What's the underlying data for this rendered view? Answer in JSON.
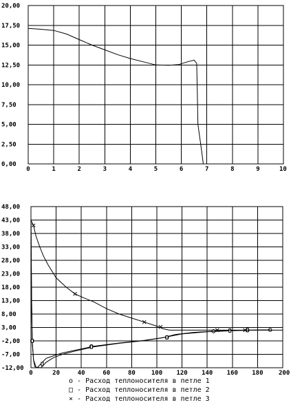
{
  "chart_data": [
    {
      "type": "line",
      "title": "",
      "xlabel": "",
      "ylabel": "",
      "xlim": [
        0,
        10
      ],
      "ylim": [
        0,
        20
      ],
      "x_ticks": [
        "0",
        "1",
        "2",
        "3",
        "4",
        "5",
        "6",
        "7",
        "8",
        "9",
        "10"
      ],
      "y_ticks": [
        "0,00",
        "2,50",
        "5,00",
        "7,50",
        "10,00",
        "12,50",
        "15,00",
        "17,50",
        "20,00"
      ],
      "grid": true,
      "series": [
        {
          "x": [
            0,
            0.5,
            1,
            1.5,
            2,
            2.5,
            3,
            3.5,
            4,
            4.5,
            5,
            5.5,
            5.9,
            6.2,
            6.5,
            6.6,
            6.62,
            6.65,
            6.8,
            6.86
          ],
          "y": [
            17.1,
            17.0,
            16.85,
            16.4,
            15.7,
            15.0,
            14.4,
            13.8,
            13.3,
            12.9,
            12.5,
            12.45,
            12.55,
            12.85,
            13.1,
            12.7,
            10.0,
            5.0,
            1.5,
            0.0
          ]
        }
      ]
    },
    {
      "type": "line",
      "title": "",
      "xlabel": "",
      "ylabel": "",
      "xlim": [
        0,
        200
      ],
      "ylim": [
        -12,
        48
      ],
      "x_ticks": [
        "0",
        "20",
        "40",
        "60",
        "80",
        "100",
        "120",
        "140",
        "160",
        "180",
        "200"
      ],
      "y_ticks": [
        "-12,00",
        "-7,00",
        "-2,00",
        "3,00",
        "8,00",
        "13,00",
        "18,00",
        "23,00",
        "28,00",
        "33,00",
        "38,00",
        "43,00",
        "48,00"
      ],
      "grid": true,
      "series": [
        {
          "name": "о - Расход теплоносителя в петле 1",
          "marker": "circle",
          "x": [
            0,
            0.5,
            1,
            2,
            3,
            5,
            8,
            12,
            18,
            25,
            35,
            50,
            70,
            90,
            105,
            115,
            130,
            145,
            160,
            175,
            190
          ],
          "y": [
            44,
            14,
            -2,
            -9,
            -11.5,
            -12,
            -10.5,
            -8.5,
            -7.5,
            -6.5,
            -5.5,
            -4.0,
            -2.8,
            -1.8,
            -0.8,
            0.4,
            1.2,
            1.6,
            1.9,
            2.0,
            2.1
          ],
          "marker_x": [
            1,
            48,
            108,
            145,
            172,
            190
          ],
          "marker_y": [
            -2,
            -4.0,
            -0.7,
            1.6,
            1.95,
            2.1
          ]
        },
        {
          "name": "□ - Расход теплоносителя в петле 2",
          "marker": "square",
          "x": [
            0,
            0.5,
            1,
            2,
            4,
            8,
            12,
            18,
            25,
            35,
            50,
            70,
            90,
            105,
            120,
            140,
            160,
            175,
            190
          ],
          "y": [
            44,
            14,
            -2,
            -9,
            -11.8,
            -12,
            -10.0,
            -8.2,
            -7.0,
            -5.8,
            -4.2,
            -2.9,
            -1.9,
            -0.8,
            0.6,
            1.4,
            1.8,
            2.0,
            2.1
          ],
          "marker_x": [
            1,
            9,
            48,
            108,
            158,
            172
          ],
          "marker_y": [
            -2,
            -10.6,
            -4.2,
            -0.7,
            1.85,
            2.05
          ]
        },
        {
          "name": "× - Расход теплоносителя в петле 3",
          "marker": "cross",
          "x": [
            0,
            1,
            2,
            4,
            7,
            10,
            14,
            20,
            28,
            35,
            42,
            50,
            60,
            70,
            80,
            90,
            100,
            105,
            110,
            120,
            140,
            160,
            180,
            200
          ],
          "y": [
            43,
            42,
            41,
            37,
            33,
            29.5,
            26,
            21.5,
            18,
            15.5,
            14,
            12.5,
            10,
            8,
            6.5,
            5,
            3.5,
            2.5,
            2.0,
            2.0,
            2.0,
            2.0,
            2.0,
            2.0
          ],
          "marker_x": [
            2,
            35,
            90,
            103,
            148,
            170
          ],
          "marker_y": [
            41,
            15.5,
            5,
            3.2,
            2.0,
            2.0
          ]
        }
      ]
    }
  ]
}
